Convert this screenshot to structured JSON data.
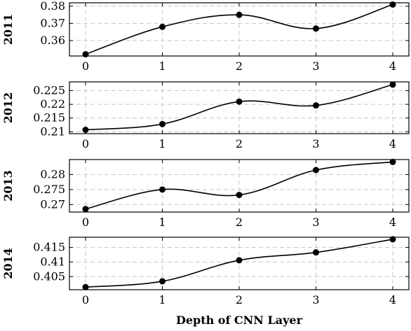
{
  "chart_data": {
    "type": "line",
    "xlabel": "Depth of CNN Layer",
    "x": [
      0,
      1,
      2,
      3,
      4
    ],
    "xticks": [
      "0",
      "1",
      "2",
      "3",
      "4"
    ],
    "grid": true,
    "panels": [
      {
        "ylabel": "2011",
        "values": [
          0.352,
          0.368,
          0.375,
          0.367,
          0.381
        ],
        "ylim": [
          0.351,
          0.382
        ],
        "yticks": [
          0.36,
          0.37,
          0.38
        ],
        "ytick_labels": [
          "0.36",
          "0.37",
          "0.38"
        ]
      },
      {
        "ylabel": "2012",
        "values": [
          0.2107,
          0.2128,
          0.221,
          0.2196,
          0.2272
        ],
        "ylim": [
          0.2093,
          0.2282
        ],
        "yticks": [
          0.21,
          0.215,
          0.22,
          0.225
        ],
        "ytick_labels": [
          "0.21",
          "0.215",
          "0.22",
          "0.225"
        ]
      },
      {
        "ylabel": "2013",
        "values": [
          0.2685,
          0.275,
          0.2732,
          0.2815,
          0.2842
        ],
        "ylim": [
          0.2675,
          0.285
        ],
        "yticks": [
          0.27,
          0.275,
          0.28
        ],
        "ytick_labels": [
          "0.27",
          "0.275",
          "0.28"
        ]
      },
      {
        "ylabel": "2014",
        "values": [
          0.4014,
          0.4034,
          0.4106,
          0.4133,
          0.4178
        ],
        "ylim": [
          0.4005,
          0.4185
        ],
        "yticks": [
          0.405,
          0.41,
          0.415
        ],
        "ytick_labels": [
          "0.405",
          "0.41",
          "0.415"
        ]
      }
    ]
  }
}
